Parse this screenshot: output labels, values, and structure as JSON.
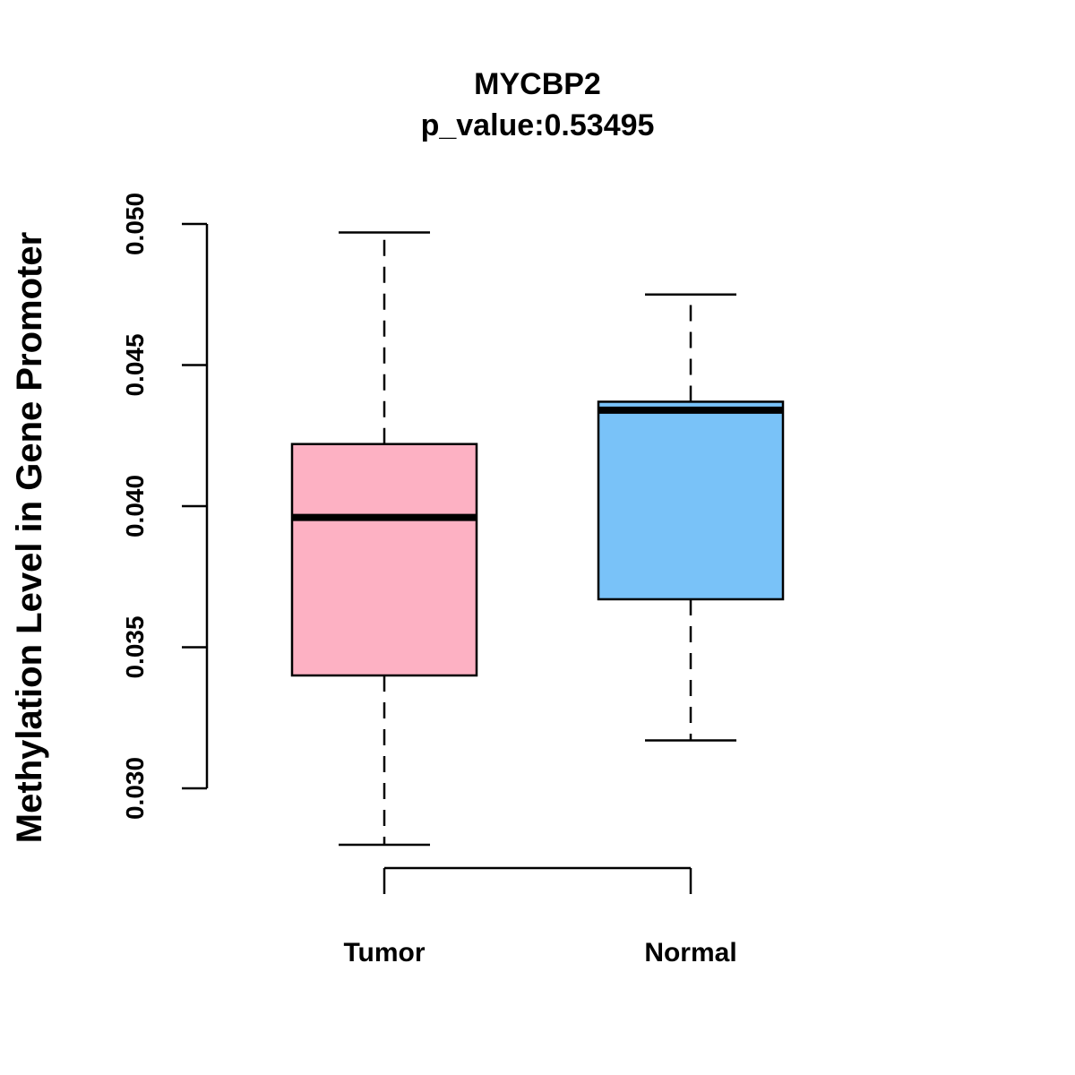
{
  "chart_data": {
    "type": "box",
    "title": "MYCBP2",
    "subtitle": "p_value:0.53495",
    "xlabel": "",
    "ylabel": "Methylation Level in Gene Promoter",
    "ylim": [
      0.03,
      0.05
    ],
    "yticks": [
      "0.030",
      "0.035",
      "0.040",
      "0.045",
      "0.050"
    ],
    "grid": false,
    "categories": [
      "Tumor",
      "Normal"
    ],
    "boxes": [
      {
        "name": "Tumor",
        "color": "#FDB1C3",
        "whisker_low": 0.028,
        "q1": 0.034,
        "median": 0.0396,
        "q3": 0.0422,
        "whisker_high": 0.0497
      },
      {
        "name": "Normal",
        "color": "#79C2F8",
        "whisker_low": 0.0317,
        "q1": 0.0367,
        "median": 0.0434,
        "q3": 0.0437,
        "whisker_high": 0.0475
      }
    ]
  }
}
